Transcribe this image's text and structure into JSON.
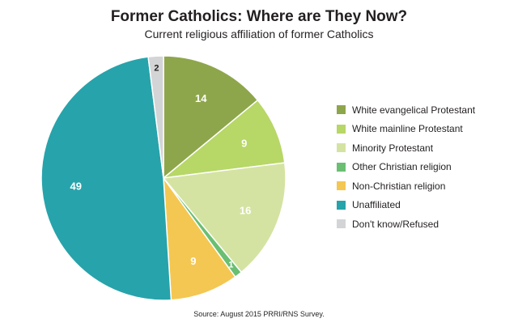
{
  "chart_data": {
    "type": "pie",
    "title": "Former Catholics: Where are They Now?",
    "subtitle": "Current religious affiliation of former Catholics",
    "slices": [
      {
        "label": "White evangelical Protestant",
        "value": 14,
        "color": "#8ea64b",
        "label_color": "#ffffff"
      },
      {
        "label": "White mainline Protestant",
        "value": 9,
        "color": "#b7d767",
        "label_color": "#ffffff"
      },
      {
        "label": "Minority Protestant",
        "value": 16,
        "color": "#d4e3a2",
        "label_color": "#ffffff"
      },
      {
        "label": "Other Christian religion",
        "value": 1,
        "color": "#6abf72",
        "label_color": "#ffffff"
      },
      {
        "label": "Non-Christian religion",
        "value": 9,
        "color": "#f4c752",
        "label_color": "#ffffff"
      },
      {
        "label": "Unaffiliated",
        "value": 49,
        "color": "#27a3ab",
        "label_color": "#ffffff"
      },
      {
        "label": "Don't know/Refused",
        "value": 2,
        "color": "#d3d4d5",
        "label_color": "#231f20"
      }
    ],
    "source": "Source: August 2015 PRRI/RNS Survey."
  }
}
